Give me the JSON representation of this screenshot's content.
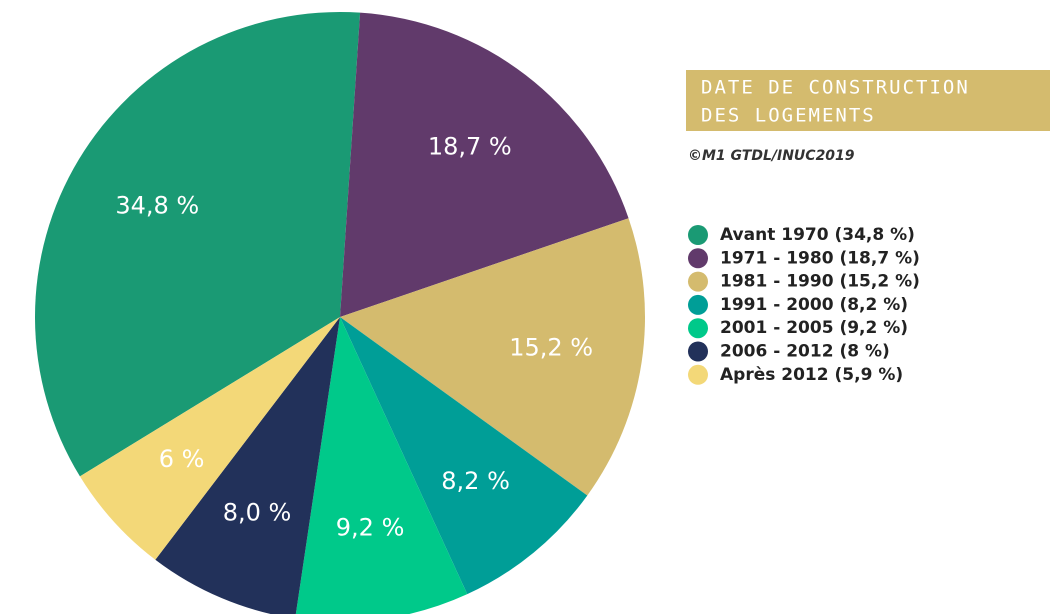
{
  "chart_data": {
    "type": "pie",
    "title": [
      "DATE DE CONSTRUCTION",
      "DES LOGEMENTS"
    ],
    "subtitle": "©M1 GTDL/INUC2019",
    "categories": [
      "Avant 1970 (34,8 %)",
      "1971 - 1980 (18,7 %)",
      "1981 - 1990 (15,2 %)",
      "1991 - 2000 (8,2 %)",
      "2001 - 2005 (9,2 %)",
      "2006 - 2012 (8 %)",
      "Après 2012 (5,9 %)"
    ],
    "values": [
      34.8,
      18.7,
      15.2,
      8.2,
      9.2,
      8,
      5.9
    ],
    "value_labels": [
      "34,8 %",
      "18,7 %",
      "15,2 %",
      "8,2 %",
      "9,2 %",
      "8,0 %",
      "6 %"
    ],
    "colors": [
      "#1a9a74",
      "#613a6b",
      "#d4bb6e",
      "#009e97",
      "#00c98a",
      "#22315a",
      "#f3d878"
    ],
    "legend": "right"
  }
}
